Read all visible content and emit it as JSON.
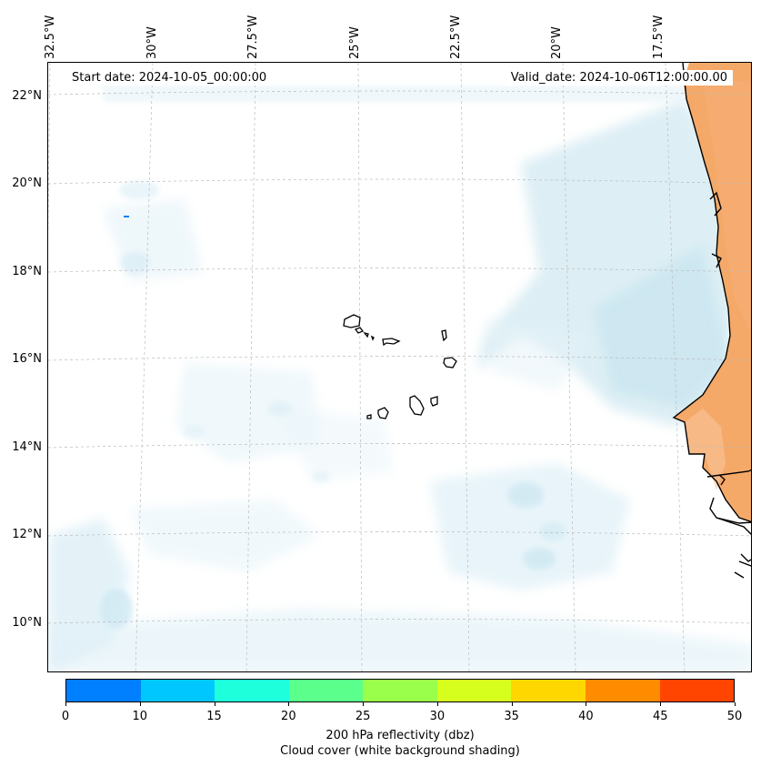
{
  "map": {
    "start_date": "Start date: 2024-10-05_00:00:00",
    "valid_date": "Valid_date: 2024-10-06T12:00:00.00",
    "lon_labels": [
      "32.5°W",
      "30°W",
      "27.5°W",
      "25°W",
      "22.5°W",
      "20°W",
      "17.5°W"
    ],
    "lat_labels": [
      "22°N",
      "20°N",
      "18°N",
      "16°N",
      "14°N",
      "12°N",
      "10°N"
    ],
    "lon_extent": [
      -32.6,
      -15.2
    ],
    "lat_extent": [
      8.9,
      22.8
    ],
    "lon_ticks": [
      -32.5,
      -30,
      -27.5,
      -25,
      -22.5,
      -20,
      -17.5
    ],
    "lat_ticks": [
      22,
      20,
      18,
      16,
      14,
      12,
      10
    ],
    "land_color": "#f4a460",
    "cloud_color": "#add8e6",
    "coastline_color": "#000000"
  },
  "colorbar": {
    "label_line1": "200 hPa reflectivity (dbz)",
    "label_line2": "Cloud cover (white background shading)",
    "ticks": [
      "0",
      "10",
      "15",
      "20",
      "25",
      "30",
      "35",
      "40",
      "45",
      "50"
    ],
    "colors": [
      "#007fff",
      "#00c8ff",
      "#1effdc",
      "#5aff8c",
      "#9aff4b",
      "#d7ff1e",
      "#ffd700",
      "#ff8c00",
      "#ff4500"
    ]
  }
}
